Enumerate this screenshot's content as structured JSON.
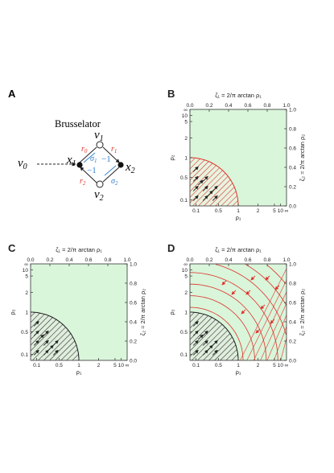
{
  "panels": {
    "A": {
      "letter": "A",
      "title": "Brusselator",
      "nodes": {
        "v0": "v",
        "v0_sub": "0",
        "v1": "v",
        "v1_sub": "1",
        "v2": "v",
        "v2_sub": "2",
        "x1": "x",
        "x1_sub": "1",
        "x2": "x",
        "x2_sub": "2"
      },
      "edge_labels": {
        "r0": "r",
        "r0_sub": "0",
        "r1": "r",
        "r1_sub": "1",
        "r2": "r",
        "r2_sub": "2",
        "sigma1": "σ",
        "sigma1_sub": "1",
        "sigma2": "σ",
        "sigma2_sub": "2",
        "minus_one_a": "−1",
        "minus_one_b": "−1"
      },
      "colors": {
        "red": "#e0302a",
        "blue": "#2f7fd0"
      }
    },
    "B": {
      "letter": "B"
    },
    "C": {
      "letter": "C"
    },
    "D": {
      "letter": "D"
    }
  },
  "axes": {
    "top_label": "ζ₁ = ",
    "top_label_tail": "arctan ρ₁",
    "right_label": "ζ₂ = ",
    "right_label_tail": "arctan ρ₂",
    "frac_num": "2",
    "frac_den": "π",
    "bottom_label": "ρ₁",
    "left_label": "ρ₂",
    "zeta_ticks": [
      "0.0",
      "0.2",
      "0.4",
      "0.6",
      "0.8",
      "1.0"
    ],
    "rho_ticks": [
      "0.1",
      "0.5",
      "1",
      "2",
      "5",
      "10",
      "∞"
    ]
  },
  "colors": {
    "feasible": "#d9f5da",
    "boundary_red": "#e0302a",
    "boundary_black": "#1b1b1b",
    "hatch_green": "#b9d8a8"
  }
}
